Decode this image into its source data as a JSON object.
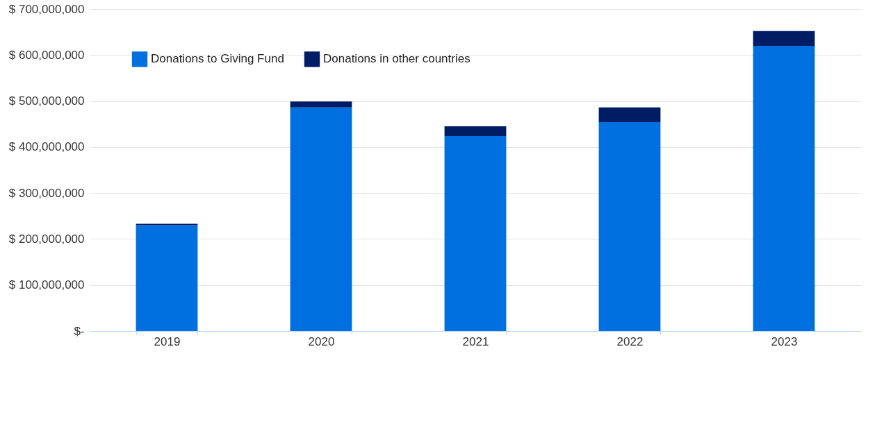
{
  "chart_data": {
    "type": "bar",
    "stacked": true,
    "categories": [
      "2019",
      "2020",
      "2021",
      "2022",
      "2023"
    ],
    "series": [
      {
        "name": "Donations to Giving Fund",
        "color": "#0070e0",
        "values": [
          230000000,
          486000000,
          424000000,
          454000000,
          620000000
        ]
      },
      {
        "name": "Donations in other countries",
        "color": "#001c64",
        "values": [
          3000000,
          13000000,
          21000000,
          32000000,
          32000000
        ]
      }
    ],
    "ylim": [
      0,
      700000000
    ],
    "yticks": [
      {
        "value": 0,
        "label": "$-"
      },
      {
        "value": 100000000,
        "label": "$ 100,000,000"
      },
      {
        "value": 200000000,
        "label": "$ 200,000,000"
      },
      {
        "value": 300000000,
        "label": "$ 300,000,000"
      },
      {
        "value": 400000000,
        "label": "$ 400,000,000"
      },
      {
        "value": 500000000,
        "label": "$ 500,000,000"
      },
      {
        "value": 600000000,
        "label": "$ 600,000,000"
      },
      {
        "value": 700000000,
        "label": "$ 700,000,000"
      }
    ],
    "grid": "y",
    "legend": "top left"
  }
}
